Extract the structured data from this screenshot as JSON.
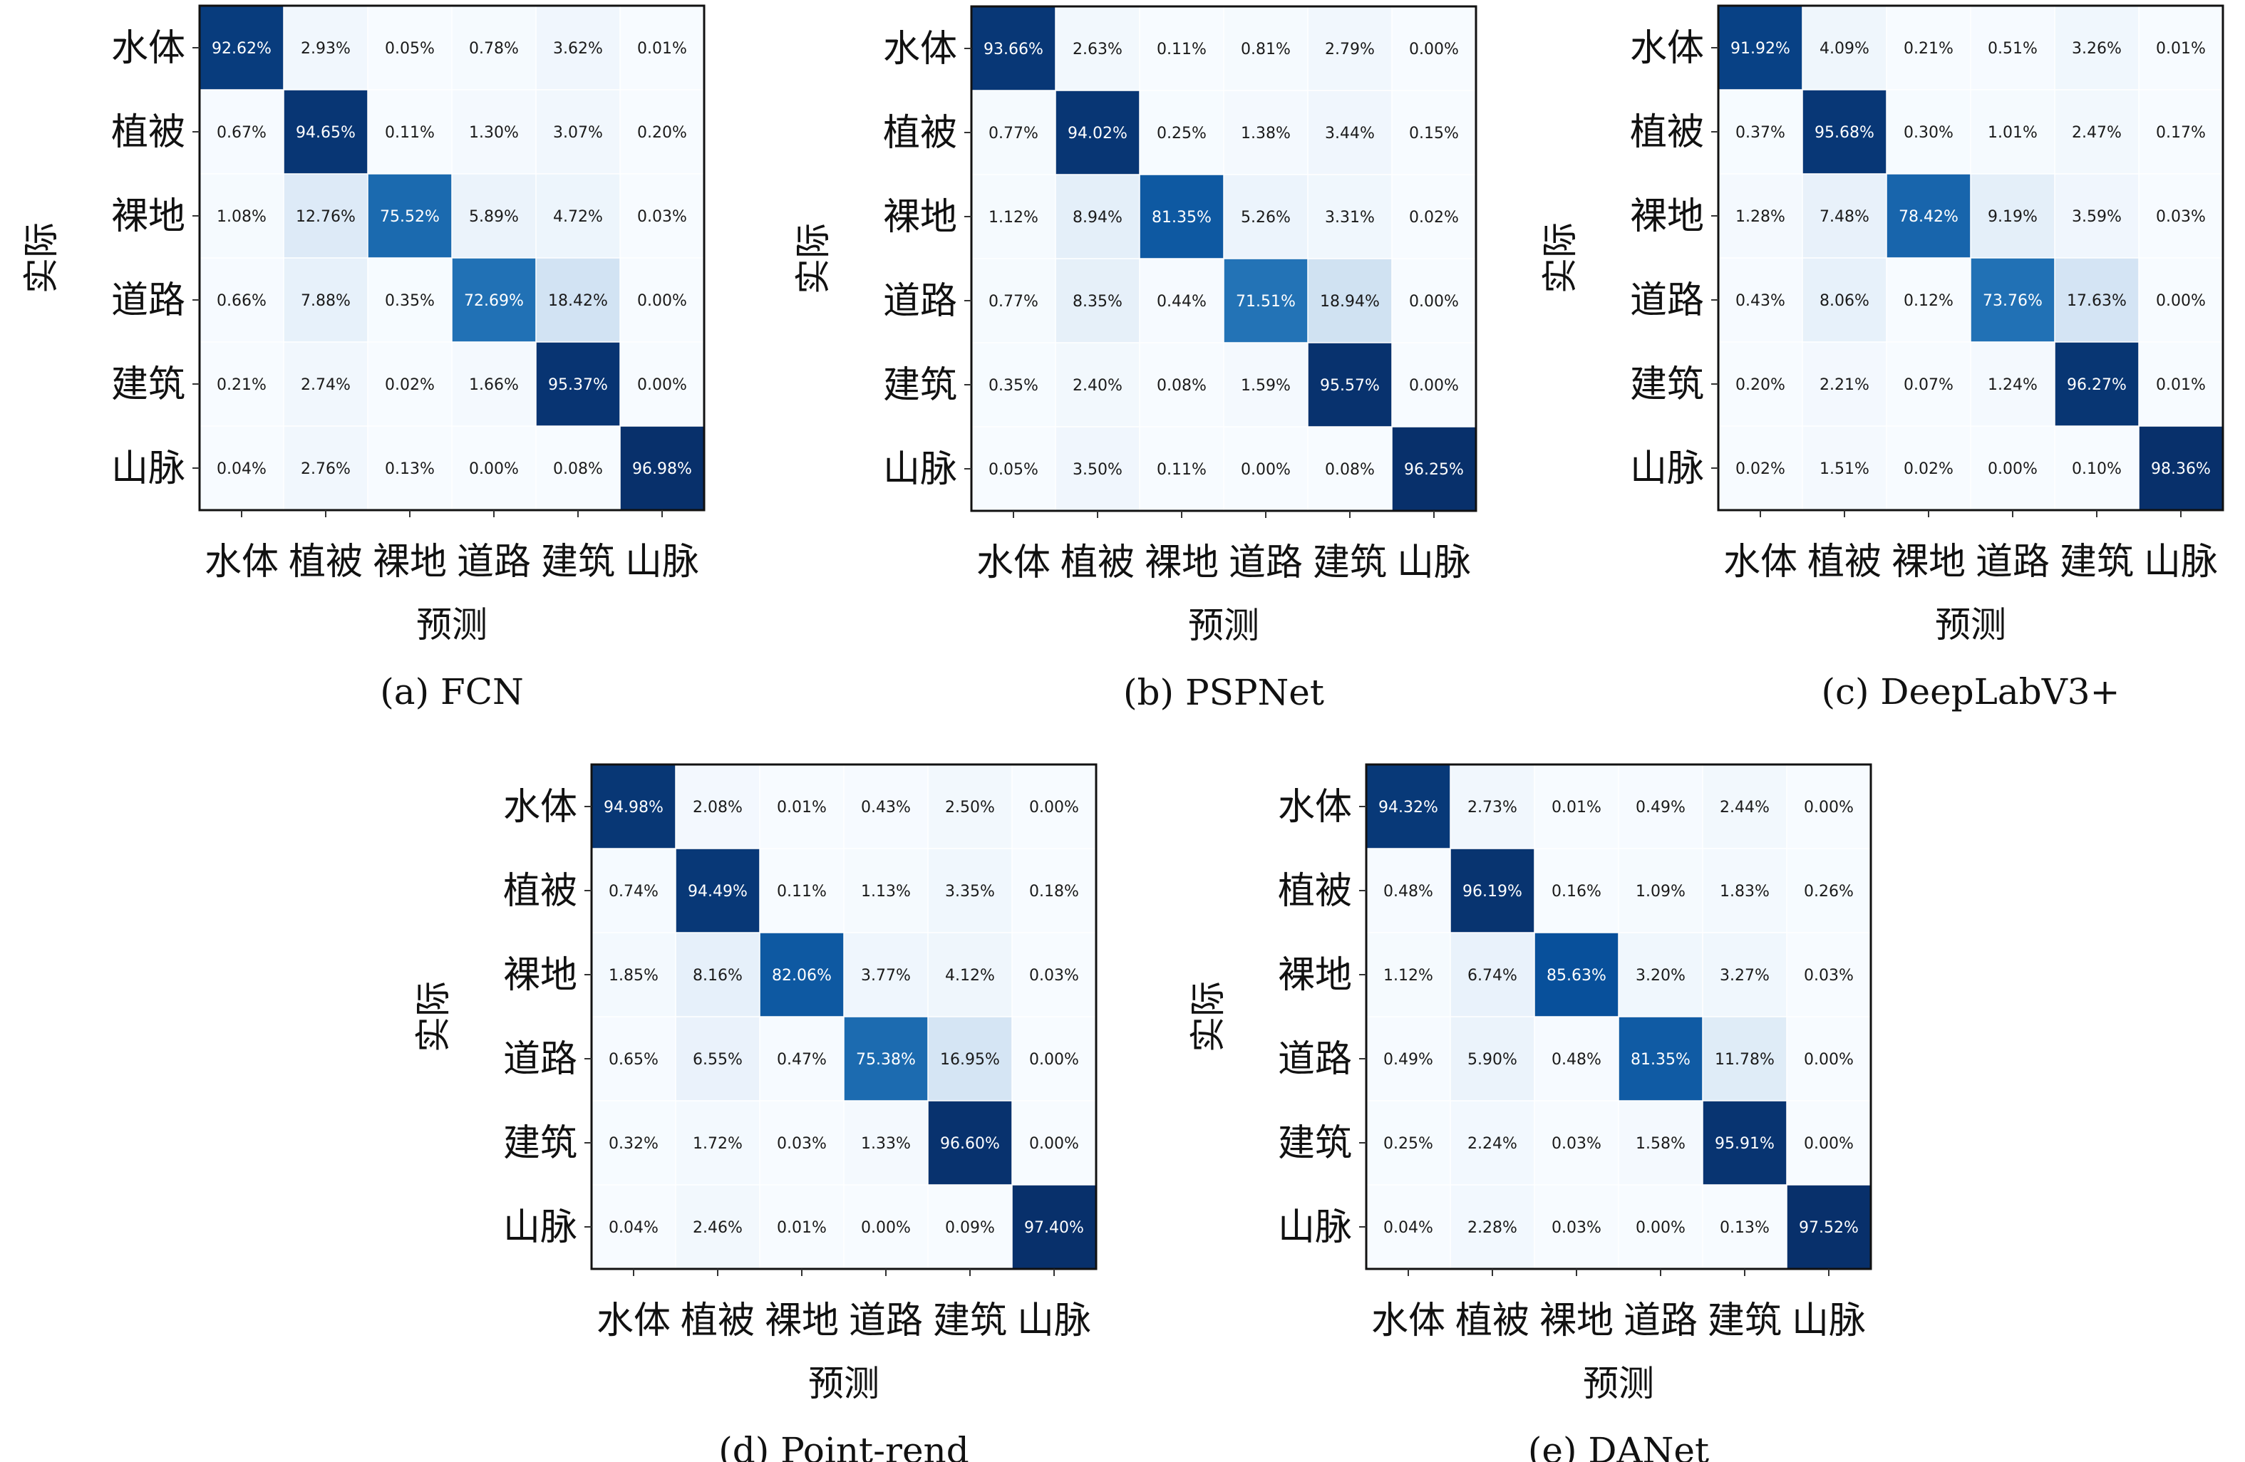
{
  "chart_data": [
    {
      "type": "heatmap",
      "title": "(a) FCN",
      "xlabel": "预测",
      "ylabel": "实际",
      "row_categories": [
        "水体",
        "植被",
        "裸地",
        "道路",
        "建筑",
        "山脉"
      ],
      "col_categories": [
        "水体",
        "植被",
        "裸地",
        "道路",
        "建筑",
        "山脉"
      ],
      "values": [
        [
          92.62,
          2.93,
          0.05,
          0.78,
          3.62,
          0.01
        ],
        [
          0.67,
          94.65,
          0.11,
          1.3,
          3.07,
          0.2
        ],
        [
          1.08,
          12.76,
          75.52,
          5.89,
          4.72,
          0.03
        ],
        [
          0.66,
          7.88,
          0.35,
          72.69,
          18.42,
          0.0
        ],
        [
          0.21,
          2.74,
          0.02,
          1.66,
          95.37,
          0.0
        ],
        [
          0.04,
          2.76,
          0.13,
          0.0,
          0.08,
          96.98
        ]
      ],
      "value_suffix": "%",
      "colormap": "Blues"
    },
    {
      "type": "heatmap",
      "title": "(b) PSPNet",
      "xlabel": "预测",
      "ylabel": "实际",
      "row_categories": [
        "水体",
        "植被",
        "裸地",
        "道路",
        "建筑",
        "山脉"
      ],
      "col_categories": [
        "水体",
        "植被",
        "裸地",
        "道路",
        "建筑",
        "山脉"
      ],
      "values": [
        [
          93.66,
          2.63,
          0.11,
          0.81,
          2.79,
          0.0
        ],
        [
          0.77,
          94.02,
          0.25,
          1.38,
          3.44,
          0.15
        ],
        [
          1.12,
          8.94,
          81.35,
          5.26,
          3.31,
          0.02
        ],
        [
          0.77,
          8.35,
          0.44,
          71.51,
          18.94,
          0.0
        ],
        [
          0.35,
          2.4,
          0.08,
          1.59,
          95.57,
          0.0
        ],
        [
          0.05,
          3.5,
          0.11,
          0.0,
          0.08,
          96.25
        ]
      ],
      "value_suffix": "%",
      "colormap": "Blues"
    },
    {
      "type": "heatmap",
      "title": "(c) DeepLabV3+",
      "xlabel": "预测",
      "ylabel": "实际",
      "row_categories": [
        "水体",
        "植被",
        "裸地",
        "道路",
        "建筑",
        "山脉"
      ],
      "col_categories": [
        "水体",
        "植被",
        "裸地",
        "道路",
        "建筑",
        "山脉"
      ],
      "values": [
        [
          91.92,
          4.09,
          0.21,
          0.51,
          3.26,
          0.01
        ],
        [
          0.37,
          95.68,
          0.3,
          1.01,
          2.47,
          0.17
        ],
        [
          1.28,
          7.48,
          78.42,
          9.19,
          3.59,
          0.03
        ],
        [
          0.43,
          8.06,
          0.12,
          73.76,
          17.63,
          0.0
        ],
        [
          0.2,
          2.21,
          0.07,
          1.24,
          96.27,
          0.01
        ],
        [
          0.02,
          1.51,
          0.02,
          0.0,
          0.1,
          98.36
        ]
      ],
      "value_suffix": "%",
      "colormap": "Blues"
    },
    {
      "type": "heatmap",
      "title": "(d) Point-rend",
      "xlabel": "预测",
      "ylabel": "实际",
      "row_categories": [
        "水体",
        "植被",
        "裸地",
        "道路",
        "建筑",
        "山脉"
      ],
      "col_categories": [
        "水体",
        "植被",
        "裸地",
        "道路",
        "建筑",
        "山脉"
      ],
      "values": [
        [
          94.98,
          2.08,
          0.01,
          0.43,
          2.5,
          0.0
        ],
        [
          0.74,
          94.49,
          0.11,
          1.13,
          3.35,
          0.18
        ],
        [
          1.85,
          8.16,
          82.06,
          3.77,
          4.12,
          0.03
        ],
        [
          0.65,
          6.55,
          0.47,
          75.38,
          16.95,
          0.0
        ],
        [
          0.32,
          1.72,
          0.03,
          1.33,
          96.6,
          0.0
        ],
        [
          0.04,
          2.46,
          0.01,
          0.0,
          0.09,
          97.4
        ]
      ],
      "value_suffix": "%",
      "colormap": "Blues"
    },
    {
      "type": "heatmap",
      "title": "(e) DANet",
      "xlabel": "预测",
      "ylabel": "实际",
      "row_categories": [
        "水体",
        "植被",
        "裸地",
        "道路",
        "建筑",
        "山脉"
      ],
      "col_categories": [
        "水体",
        "植被",
        "裸地",
        "道路",
        "建筑",
        "山脉"
      ],
      "values": [
        [
          94.32,
          2.73,
          0.01,
          0.49,
          2.44,
          0.0
        ],
        [
          0.48,
          96.19,
          0.16,
          1.09,
          1.83,
          0.26
        ],
        [
          1.12,
          6.74,
          85.63,
          3.2,
          3.27,
          0.03
        ],
        [
          0.49,
          5.9,
          0.48,
          81.35,
          11.78,
          0.0
        ],
        [
          0.25,
          2.24,
          0.03,
          1.58,
          95.91,
          0.0
        ],
        [
          0.04,
          2.28,
          0.03,
          0.0,
          0.13,
          97.52
        ]
      ],
      "value_suffix": "%",
      "colormap": "Blues"
    }
  ]
}
